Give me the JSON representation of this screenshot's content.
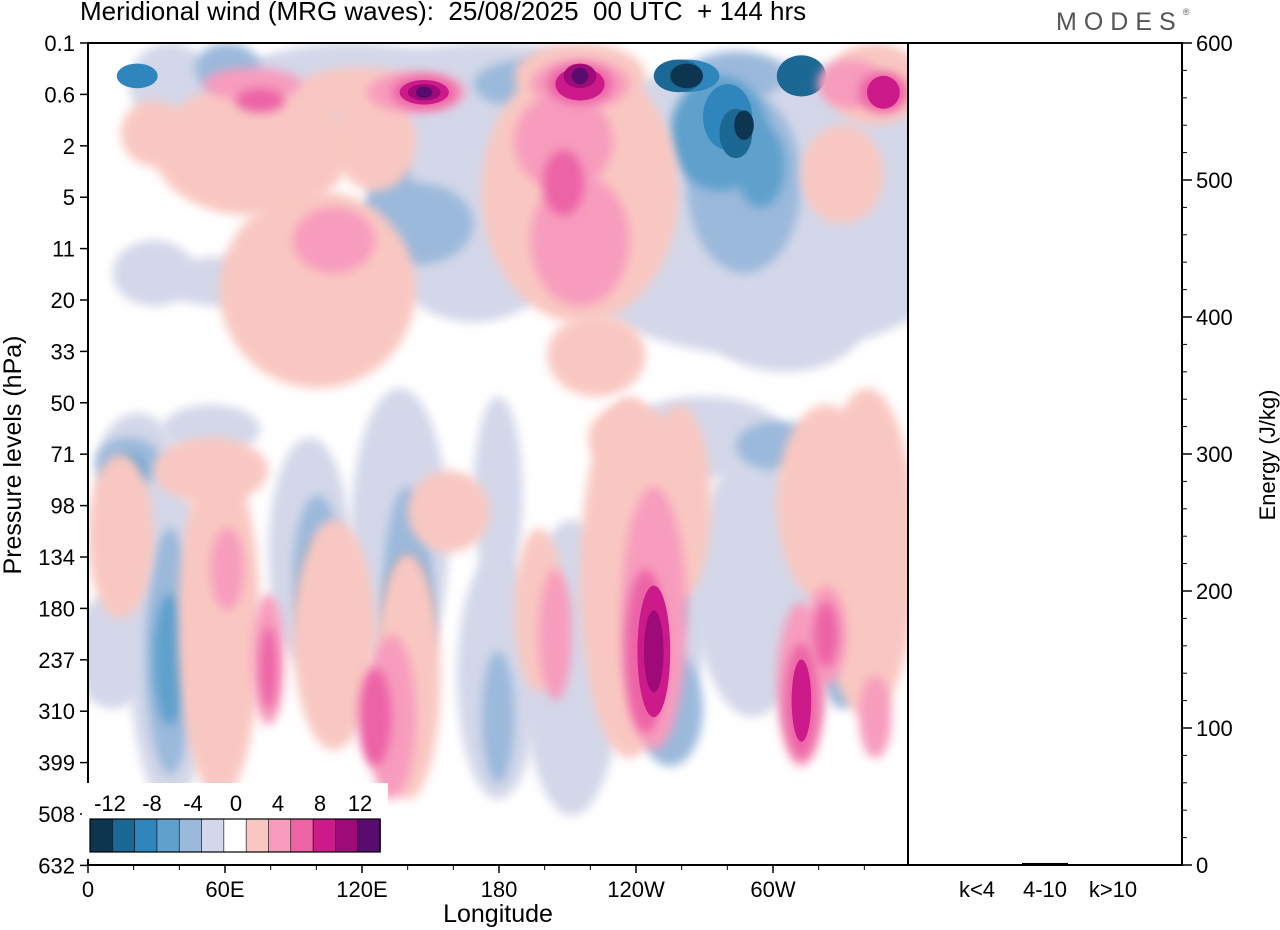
{
  "title": "Meridional wind (MRG waves):  25/08/2025  00 UTC  + 144 hrs",
  "brand": "MODES",
  "brand_mark": "®",
  "chart_data": [
    {
      "type": "contourf",
      "title": "Meridional wind (MRG waves):  25/08/2025  00 UTC  + 144 hrs",
      "xlabel": "Longitude",
      "ylabel": "Pressure levels (hPa)",
      "x_ticks": [
        "0",
        "60E",
        "120E",
        "180",
        "120W",
        "60W"
      ],
      "y_ticks": [
        "0.1",
        "0.6",
        "2",
        "5",
        "11",
        "20",
        "33",
        "50",
        "71",
        "98",
        "134",
        "180",
        "237",
        "310",
        "399",
        "508",
        "632"
      ],
      "colorbar": {
        "labels": [
          "-12",
          "-8",
          "-4",
          "0",
          "4",
          "8",
          "12"
        ],
        "levels": [
          -14,
          -12,
          -10,
          -8,
          -6,
          -4,
          -2,
          2,
          4,
          6,
          8,
          10,
          12,
          14
        ],
        "colors": [
          "#0d3550",
          "#1b6894",
          "#2e86bc",
          "#5fa0cc",
          "#9bb9db",
          "#d3d7e9",
          "#ffffff",
          "#f9c7c1",
          "#f79cbd",
          "#ec63a6",
          "#cc1a8a",
          "#9e0a78",
          "#570c6e"
        ]
      }
    },
    {
      "type": "bar",
      "categories": [
        "k<4",
        "4-10",
        "k>10"
      ],
      "values": [
        0.3,
        1.5,
        0.2
      ],
      "ylabel": "Energy (J/kg)",
      "ylim": [
        0,
        600
      ],
      "y_ticks": [
        "0",
        "100",
        "200",
        "300",
        "400",
        "500",
        "600"
      ]
    }
  ]
}
